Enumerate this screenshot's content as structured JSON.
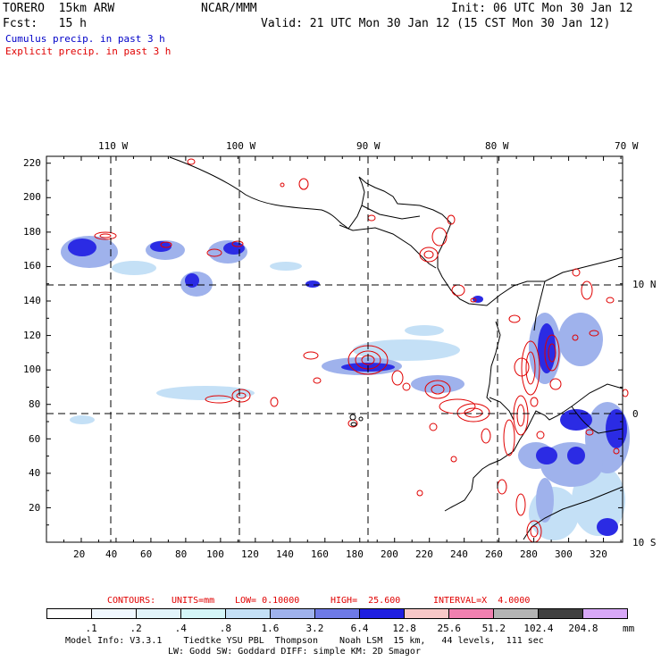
{
  "header": {
    "model": "TORERO  15km ARW",
    "center": "NCAR/MMM",
    "init": "Init: 06 UTC Mon 30 Jan 12",
    "fcst": "Fcst:   15 h",
    "valid": "Valid: 21 UTC Mon 30 Jan 12 (15 CST Mon 30 Jan 12)",
    "cumulus": "Cumulus precip. in past 3 h",
    "explicit": "Explicit precip. in past 3 h"
  },
  "map": {
    "lon_labels": [
      "110 W",
      "100 W",
      "90 W",
      "80 W",
      "70 W"
    ],
    "lat_labels": [
      "10 N",
      "0",
      "10 S"
    ],
    "y_ticks": [
      "220",
      "200",
      "180",
      "160",
      "140",
      "120",
      "100",
      "80",
      "60",
      "40",
      "20"
    ],
    "x_ticks": [
      "20",
      "40",
      "60",
      "80",
      "100",
      "120",
      "140",
      "160",
      "180",
      "200",
      "220",
      "240",
      "260",
      "280",
      "300",
      "320"
    ],
    "x_range": [
      0,
      331
    ],
    "y_range": [
      0,
      224
    ]
  },
  "contours_info": {
    "label": "CONTOURS:",
    "units": "UNITS=mm",
    "low": "LOW= 0.10000",
    "high": "HIGH=  25.600",
    "interval": "INTERVAL=X  4.0000"
  },
  "colorbar": {
    "labels": [
      ".1",
      ".2",
      ".4",
      ".8",
      "1.6",
      "3.2",
      "6.4",
      "12.8",
      "25.6",
      "51.2",
      "102.4",
      "204.8"
    ],
    "unit": "mm",
    "colors": [
      "#ffffff",
      "#f0f8ff",
      "#e2f4fa",
      "#d4f6f8",
      "#c4e0f6",
      "#9fb2ec",
      "#6e7ae6",
      "#1f1fe0",
      "#f8c8c8",
      "#f080b0",
      "#b4b4b4",
      "#404040",
      "#d8a8f8"
    ]
  },
  "footer": {
    "line1": "Model Info: V3.3.1    Tiedtke YSU PBL  Thompson    Noah LSM  15 km,   44 levels,  111 sec",
    "line2": "LW: Godd SW: Goddard DIFF: simple KM: 2D Smagor"
  }
}
